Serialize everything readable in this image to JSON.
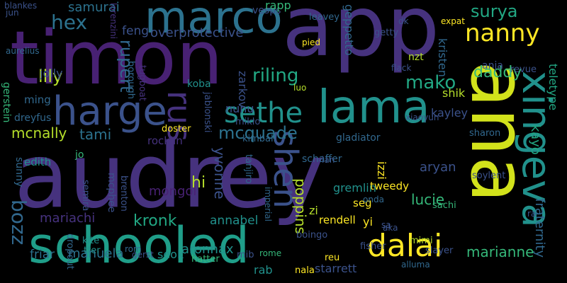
{
  "words": [
    {
      "text": "audrey",
      "color": "#46327e"
    },
    {
      "text": "app",
      "color": "#46327e"
    },
    {
      "text": "timon",
      "color": "#482173"
    },
    {
      "text": "ana",
      "color": "#d2e21b"
    },
    {
      "text": "marco",
      "color": "#2c728e"
    },
    {
      "text": "schooled",
      "color": "#1f9e89"
    },
    {
      "text": "harge",
      "color": "#3b528b"
    },
    {
      "text": "lama",
      "color": "#21918c"
    },
    {
      "text": "xingeva",
      "color": "#21918c"
    },
    {
      "text": "sethe",
      "color": "#21918c"
    },
    {
      "text": "dalai",
      "color": "#fde725"
    },
    {
      "text": "nanny",
      "color": "#fde725"
    },
    {
      "text": "rus",
      "color": "#46327e"
    },
    {
      "text": "shen",
      "color": "#3b528b"
    },
    {
      "text": "hex",
      "color": "#2c728e"
    },
    {
      "text": "mcquade",
      "color": "#2c728e"
    },
    {
      "text": "surya",
      "color": "#22a884"
    },
    {
      "text": "riling",
      "color": "#22a884"
    },
    {
      "text": "lily",
      "color": "#b5de2b"
    },
    {
      "text": "mako",
      "color": "#22a884"
    },
    {
      "text": "daddy",
      "color": "#35b779"
    },
    {
      "text": "rupert",
      "color": "#31688e"
    },
    {
      "text": "bozz",
      "color": "#31688e"
    },
    {
      "text": "mcnally",
      "color": "#b5de2b"
    },
    {
      "text": "kronk",
      "color": "#22a884"
    },
    {
      "text": "marianne",
      "color": "#35b779"
    },
    {
      "text": "fraternity",
      "color": "#31688e"
    },
    {
      "text": "kayo",
      "color": "#22a884"
    },
    {
      "text": "teletype",
      "color": "#22a884"
    },
    {
      "text": "poppins",
      "color": "#b5de2b"
    },
    {
      "text": "hi",
      "color": "#b5de2b"
    },
    {
      "text": "tami",
      "color": "#2c728e"
    },
    {
      "text": "overprotective",
      "color": "#3b528b"
    },
    {
      "text": "zarkov",
      "color": "#3b528b"
    },
    {
      "text": "kristen",
      "color": "#31688e"
    },
    {
      "text": "samurai",
      "color": "#2c728e"
    },
    {
      "text": "feng",
      "color": "#3b528b"
    },
    {
      "text": "jolly",
      "color": "#3b528b"
    },
    {
      "text": "vesps",
      "color": "#3b528b"
    },
    {
      "text": "rapp",
      "color": "#35b779"
    },
    {
      "text": "geppetto",
      "color": "#31688e"
    },
    {
      "text": "mongol",
      "color": "#482173"
    },
    {
      "text": "mariachi",
      "color": "#46327e"
    },
    {
      "text": "lucie",
      "color": "#35b779"
    },
    {
      "text": "aryan",
      "color": "#3b528b"
    },
    {
      "text": "kayley",
      "color": "#3b528b"
    },
    {
      "text": "gremlin",
      "color": "#21918c"
    },
    {
      "text": "yvonne",
      "color": "#3b528b"
    },
    {
      "text": "annabel",
      "color": "#21918c"
    },
    {
      "text": "aronnax",
      "color": "#21918c"
    },
    {
      "text": "manuela",
      "color": "#2c728e"
    },
    {
      "text": "friar",
      "color": "#2c728e"
    },
    {
      "text": "seok",
      "color": "#21918c"
    },
    {
      "text": "rab",
      "color": "#21918c"
    },
    {
      "text": "starrett",
      "color": "#3b528b"
    },
    {
      "text": "nunu",
      "color": "#3b528b"
    },
    {
      "text": "miklo",
      "color": "#3b528b"
    },
    {
      "text": "anja",
      "color": "#3b528b"
    },
    {
      "text": "shik",
      "color": "#b5de2b"
    },
    {
      "text": "koba",
      "color": "#21918c"
    },
    {
      "text": "hatter",
      "color": "#35b779"
    },
    {
      "text": "ming",
      "color": "#31688e"
    },
    {
      "text": "edith",
      "color": "#21918c"
    },
    {
      "text": "rocklin",
      "color": "#46327e"
    },
    {
      "text": "schaffer",
      "color": "#31688e"
    },
    {
      "text": "izzi",
      "color": "#fde725"
    },
    {
      "text": "seg",
      "color": "#fde725"
    },
    {
      "text": "yi",
      "color": "#fde725"
    },
    {
      "text": "zi",
      "color": "#b5de2b"
    },
    {
      "text": "sachi",
      "color": "#35b779"
    },
    {
      "text": "sharon",
      "color": "#31688e"
    },
    {
      "text": "soylent",
      "color": "#3b528b"
    },
    {
      "text": "tweedy",
      "color": "#fde725"
    },
    {
      "text": "rendell",
      "color": "#fde725"
    },
    {
      "text": "mimi",
      "color": "#b5de2b"
    },
    {
      "text": "fisher",
      "color": "#3b528b"
    },
    {
      "text": "slayer",
      "color": "#3b528b"
    },
    {
      "text": "gladiator",
      "color": "#31688e"
    },
    {
      "text": "kimball",
      "color": "#31688e"
    },
    {
      "text": "leavey",
      "color": "#31688e"
    },
    {
      "text": "getty",
      "color": "#3b528b"
    },
    {
      "text": "nzt",
      "color": "#b5de2b"
    },
    {
      "text": "revue",
      "color": "#3b528b"
    },
    {
      "text": "sunny",
      "color": "#31688e"
    },
    {
      "text": "gerstein",
      "color": "#35b779"
    },
    {
      "text": "dreyfus",
      "color": "#31688e"
    },
    {
      "text": "jo",
      "color": "#35b779"
    },
    {
      "text": "semira",
      "color": "#3b528b"
    },
    {
      "text": "mcphee",
      "color": "#3b528b"
    },
    {
      "text": "brenton",
      "color": "#3b528b"
    },
    {
      "text": "borough",
      "color": "#31688e"
    },
    {
      "text": "tugboat",
      "color": "#46327e"
    },
    {
      "text": "jablonski",
      "color": "#3b528b"
    },
    {
      "text": "doster",
      "color": "#fde725"
    },
    {
      "text": "tanjiro",
      "color": "#31688e"
    },
    {
      "text": "kite",
      "color": "#21918c"
    },
    {
      "text": "tter",
      "color": "#21918c"
    },
    {
      "text": "dropout",
      "color": "#31688e"
    },
    {
      "text": "mib",
      "color": "#3b528b"
    },
    {
      "text": "nala",
      "color": "#fde725"
    },
    {
      "text": "alluma",
      "color": "#31688e"
    },
    {
      "text": "reu",
      "color": "#fde725"
    },
    {
      "text": "boingo",
      "color": "#3b528b"
    },
    {
      "text": "aurelius",
      "color": "#31688e"
    },
    {
      "text": "jun",
      "color": "#3b528b"
    },
    {
      "text": "lorenzini",
      "color": "#46327e"
    },
    {
      "text": "xiaoyun",
      "color": "#3b528b"
    },
    {
      "text": "flack",
      "color": "#3b528b"
    },
    {
      "text": "expat",
      "color": "#fde725"
    },
    {
      "text": "dk",
      "color": "#3b528b"
    },
    {
      "text": "blankes",
      "color": "#3b528b"
    },
    {
      "text": "luo",
      "color": "#b5de2b"
    },
    {
      "text": "pied",
      "color": "#fde725"
    },
    {
      "text": "gerst",
      "color": "#3b528b"
    },
    {
      "text": "rom",
      "color": "#31688e"
    },
    {
      "text": "imperial",
      "color": "#31688e"
    },
    {
      "text": "lan",
      "color": "#3b528b"
    },
    {
      "text": "onda",
      "color": "#31688e"
    },
    {
      "text": "sa",
      "color": "#3b528b"
    },
    {
      "text": "aka",
      "color": "#3b528b"
    },
    {
      "text": "ra",
      "color": "#3b528b"
    },
    {
      "text": "rome",
      "color": "#35b779"
    }
  ]
}
